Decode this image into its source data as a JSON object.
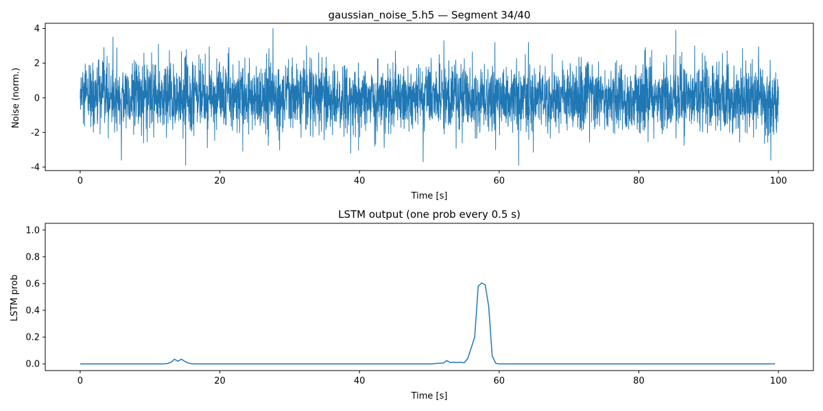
{
  "chart_data": [
    {
      "type": "line",
      "title": "gaussian_noise_5.h5 — Segment 34/40",
      "xlabel": "Time [s]",
      "ylabel": "Noise (norm.)",
      "xlim": [
        -5,
        105
      ],
      "ylim": [
        -4.2,
        4.3
      ],
      "xticks": [
        0,
        20,
        40,
        60,
        80,
        100
      ],
      "yticks": [
        -4,
        -2,
        0,
        2,
        4
      ],
      "grid": false,
      "series": [
        {
          "color": "#1f77b4",
          "noise": {
            "x_start": 0,
            "x_end": 100,
            "samples": 4000,
            "std": 1.0,
            "peaks": [
              {
                "x": 3.4,
                "y": 2.9
              },
              {
                "x": 4.7,
                "y": 3.5
              },
              {
                "x": 5.9,
                "y": -3.6
              },
              {
                "x": 11.2,
                "y": 3.1
              },
              {
                "x": 15.1,
                "y": -3.9
              },
              {
                "x": 21.3,
                "y": 2.9
              },
              {
                "x": 27.6,
                "y": 4.0
              },
              {
                "x": 32.4,
                "y": 3.0
              },
              {
                "x": 49.1,
                "y": -3.7
              },
              {
                "x": 52.1,
                "y": 3.3
              },
              {
                "x": 59.4,
                "y": 3.2
              },
              {
                "x": 62.8,
                "y": -3.9
              },
              {
                "x": 64.2,
                "y": 3.2
              },
              {
                "x": 85.3,
                "y": 3.9
              },
              {
                "x": 88.0,
                "y": 3.0
              },
              {
                "x": 98.9,
                "y": -3.6
              }
            ]
          }
        }
      ]
    },
    {
      "type": "line",
      "title": "LSTM output (one prob every 0.5 s)",
      "xlabel": "Time [s]",
      "ylabel": "LSTM prob",
      "xlim": [
        -5,
        105
      ],
      "ylim": [
        -0.05,
        1.05
      ],
      "xticks": [
        0,
        20,
        40,
        60,
        80,
        100
      ],
      "yticks": [
        0.0,
        0.2,
        0.4,
        0.6,
        0.8,
        1.0
      ],
      "grid": false,
      "series": [
        {
          "color": "#1f77b4",
          "points": [
            [
              0,
              0.0
            ],
            [
              12.0,
              0.0
            ],
            [
              12.5,
              0.003
            ],
            [
              13.0,
              0.012
            ],
            [
              13.5,
              0.035
            ],
            [
              14.0,
              0.02
            ],
            [
              14.5,
              0.035
            ],
            [
              15.0,
              0.018
            ],
            [
              15.5,
              0.006
            ],
            [
              16.0,
              0.001
            ],
            [
              16.5,
              0.0
            ],
            [
              50.5,
              0.0
            ],
            [
              51.0,
              0.004
            ],
            [
              51.5,
              0.005
            ],
            [
              52.0,
              0.006
            ],
            [
              52.5,
              0.025
            ],
            [
              53.0,
              0.01
            ],
            [
              53.5,
              0.012
            ],
            [
              54.0,
              0.01
            ],
            [
              54.5,
              0.012
            ],
            [
              55.0,
              0.008
            ],
            [
              55.5,
              0.04
            ],
            [
              56.0,
              0.12
            ],
            [
              56.5,
              0.2
            ],
            [
              57.0,
              0.58
            ],
            [
              57.5,
              0.605
            ],
            [
              58.0,
              0.59
            ],
            [
              58.5,
              0.43
            ],
            [
              59.0,
              0.06
            ],
            [
              59.5,
              0.005
            ],
            [
              60.0,
              0.0
            ],
            [
              99.5,
              0.0
            ]
          ]
        }
      ]
    }
  ]
}
